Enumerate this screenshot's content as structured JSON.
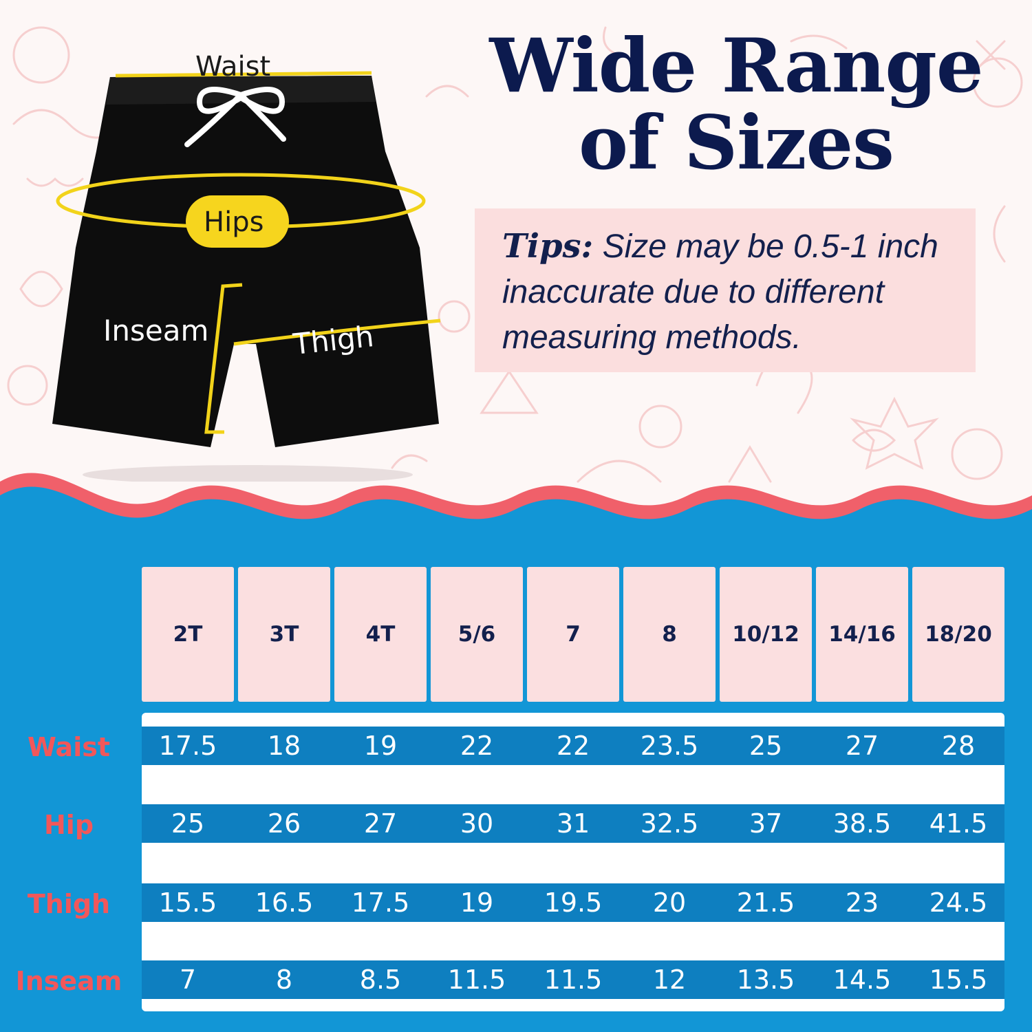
{
  "title": {
    "line1": "Wide Range",
    "line2": "of Sizes"
  },
  "tips": {
    "label": "Tips:",
    "text": " Size may be 0.5-1 inch inaccurate due to different measuring methods."
  },
  "illustration": {
    "waist_label": "Waist",
    "hips_label": "Hips",
    "inseam_label": "Inseam",
    "thigh_label": "Thigh",
    "colors": {
      "shorts": "#0d0d0d",
      "measure_line": "#f2d31a",
      "drawstring": "#ffffff"
    }
  },
  "size_chart": {
    "sizes": [
      "2T",
      "3T",
      "4T",
      "5/6",
      "7",
      "8",
      "10/12",
      "14/16",
      "18/20"
    ],
    "rows": [
      {
        "label": "Waist",
        "values": [
          "17.5",
          "18",
          "19",
          "22",
          "22",
          "23.5",
          "25",
          "27",
          "28"
        ]
      },
      {
        "label": "Hip",
        "values": [
          "25",
          "26",
          "27",
          "30",
          "31",
          "32.5",
          "37",
          "38.5",
          "41.5"
        ]
      },
      {
        "label": "Thigh",
        "values": [
          "15.5",
          "16.5",
          "17.5",
          "19",
          "19.5",
          "20",
          "21.5",
          "23",
          "24.5"
        ]
      },
      {
        "label": "Inseam",
        "values": [
          "7",
          "8",
          "8.5",
          "11.5",
          "11.5",
          "12",
          "13.5",
          "14.5",
          "15.5"
        ]
      }
    ],
    "colors": {
      "background": "#1296d6",
      "row_band": "#0e7fc0",
      "header_cell": "#fbdfe0",
      "row_label": "#f2575a",
      "wave_edge": "#f0606a"
    }
  }
}
